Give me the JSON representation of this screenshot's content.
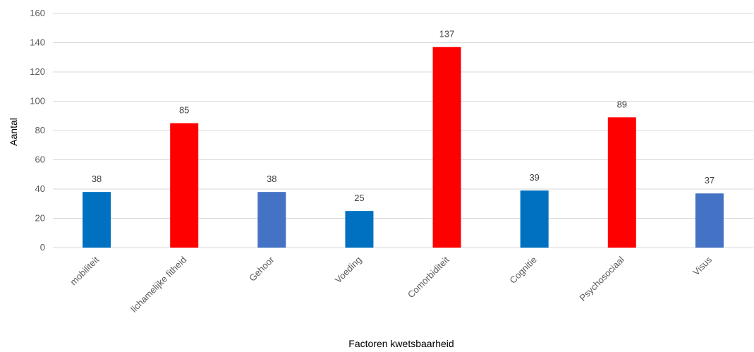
{
  "chart_data": {
    "type": "bar",
    "title": "",
    "xlabel": "Factoren kwetsbaarheid",
    "ylabel": "Aantal",
    "ylim": [
      0,
      160
    ],
    "yticks": [
      0,
      20,
      40,
      60,
      80,
      100,
      120,
      140,
      160
    ],
    "grid": true,
    "legend": "none",
    "categories": [
      "mobiliteit",
      "lichamelijke fitheid",
      "Gehoor",
      "Voeding",
      "Comorbiditeit",
      "Cognitie",
      "Psychosociaal",
      "Visus"
    ],
    "values": [
      38,
      85,
      38,
      25,
      137,
      39,
      89,
      37
    ],
    "bar_colors": [
      "#0070c0",
      "#ff0000",
      "#4472c4",
      "#0070c0",
      "#ff0000",
      "#0070c0",
      "#ff0000",
      "#4472c4"
    ],
    "data_labels": true
  }
}
